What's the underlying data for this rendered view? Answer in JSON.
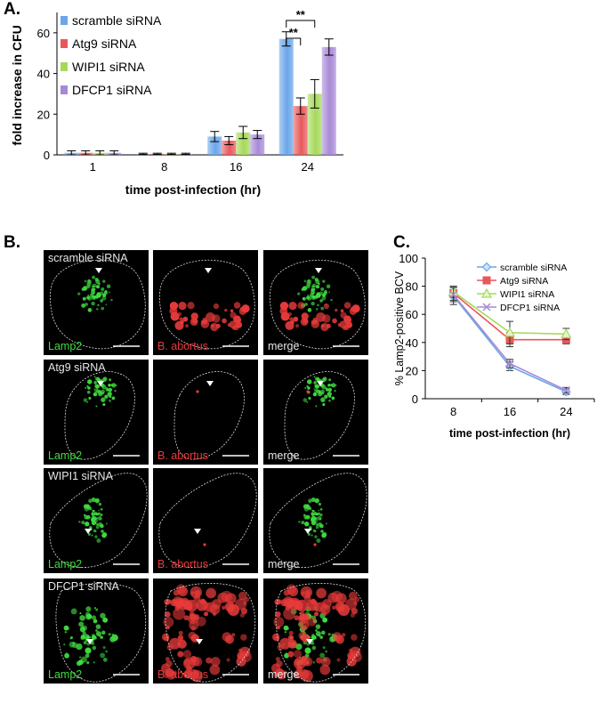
{
  "panel_labels": {
    "a": "A.",
    "b": "B.",
    "c": "C."
  },
  "colors": {
    "scramble": "#6aa6e8",
    "atg9": "#e8585a",
    "wipi1": "#a6d95a",
    "dfcp1": "#a78ad6",
    "green_channel": "#3fdc3f",
    "red_channel": "#e83a3a"
  },
  "chart_data": [
    {
      "id": "A",
      "type": "bar",
      "categories": [
        "1",
        "8",
        "16",
        "24"
      ],
      "series": [
        {
          "name": "scramble siRNA",
          "values": [
            1,
            0.5,
            9,
            57
          ],
          "errors": [
            1,
            0.3,
            2.5,
            3.5
          ]
        },
        {
          "name": "Atg9 siRNA",
          "values": [
            1,
            0.5,
            7,
            24
          ],
          "errors": [
            1,
            0.3,
            2,
            4
          ]
        },
        {
          "name": "WIPI1 siRNA",
          "values": [
            1,
            0.5,
            11,
            30
          ],
          "errors": [
            1,
            0.3,
            3,
            7
          ]
        },
        {
          "name": "DFCP1 siRNA",
          "values": [
            1,
            0.5,
            10,
            53
          ],
          "errors": [
            1,
            0.3,
            2,
            4
          ]
        }
      ],
      "xlabel": "time post-infection (hr)",
      "ylabel": "fold increase in CFU",
      "ylim": [
        0,
        70
      ],
      "yticks": [
        "0",
        "20",
        "40",
        "60"
      ],
      "significance": [
        {
          "label": "**",
          "between": [
            "scramble siRNA",
            "Atg9 siRNA"
          ],
          "category": "24"
        },
        {
          "label": "**",
          "between": [
            "scramble siRNA",
            "WIPI1 siRNA"
          ],
          "category": "24"
        }
      ],
      "legend_position": "top-left"
    },
    {
      "id": "C",
      "type": "line",
      "x": [
        "8",
        "16",
        "24"
      ],
      "series": [
        {
          "name": "scramble siRNA",
          "values": [
            73,
            23,
            5
          ],
          "errors": [
            6,
            3,
            2
          ],
          "marker": "diamond"
        },
        {
          "name": "Atg9 siRNA",
          "values": [
            75,
            42,
            42
          ],
          "errors": [
            5,
            5,
            3
          ],
          "marker": "square"
        },
        {
          "name": "WIPI1 siRNA",
          "values": [
            76,
            47,
            46
          ],
          "errors": [
            4,
            8,
            4
          ],
          "marker": "triangle"
        },
        {
          "name": "DFCP1 siRNA",
          "values": [
            74,
            25,
            6
          ],
          "errors": [
            5,
            3,
            2
          ],
          "marker": "x"
        }
      ],
      "xlabel": "time post-infection (hr)",
      "ylabel": "% Lamp2-positive BCV",
      "ylim": [
        0,
        100
      ],
      "yticks": [
        "0",
        "20",
        "40",
        "60",
        "80",
        "100"
      ],
      "legend_position": "top-right"
    }
  ],
  "micrographs": {
    "rows": [
      {
        "condition": "scramble siRNA"
      },
      {
        "condition": "Atg9 siRNA"
      },
      {
        "condition": "WIPI1 siRNA"
      },
      {
        "condition": "DFCP1 siRNA"
      }
    ],
    "channels": [
      "Lamp2",
      "B. abortus",
      "merge"
    ]
  }
}
